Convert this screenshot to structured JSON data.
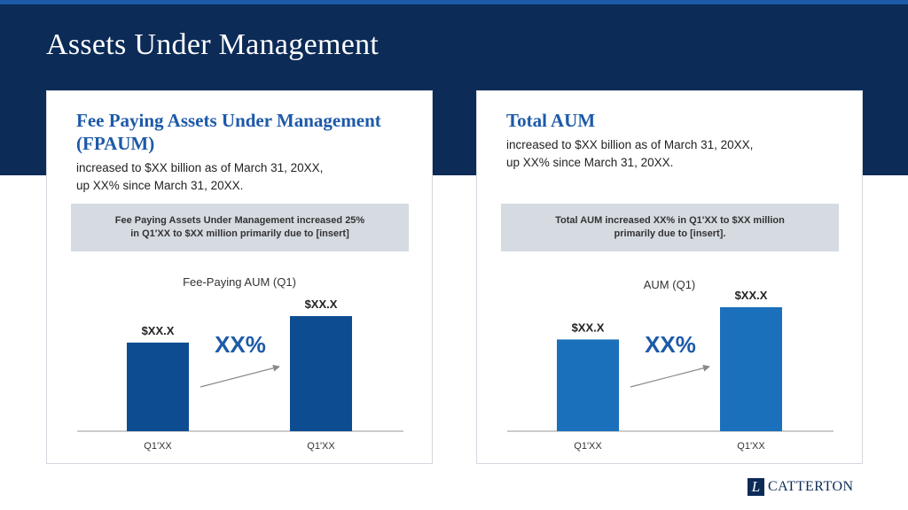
{
  "slide": {
    "title": "Assets Under Management"
  },
  "left_panel": {
    "heading": "Fee Paying Assets Under Management (FPAUM)",
    "description": "increased to $XX billion as of March 31, 20XX,\nup XX% since March 31, 20XX.",
    "callout": "Fee Paying Assets Under Management increased 25%\nin Q1'XX to $XX million primarily due to [insert]"
  },
  "right_panel": {
    "heading": "Total AUM",
    "description": "increased to $XX billion as of March 31, 20XX,\nup XX% since March 31, 20XX.",
    "callout": "Total AUM increased XX% in Q1'XX to $XX million\nprimarily due to [insert]."
  },
  "chart_data": [
    {
      "type": "bar",
      "title": "Fee-Paying AUM (Q1)",
      "categories": [
        "Q1'XX",
        "Q1'XX"
      ],
      "values": [
        0.77,
        1.0
      ],
      "data_labels": [
        "$XX.X",
        "$XX.X"
      ],
      "growth_label": "XX%",
      "bar_color": "#0e4c92",
      "grid": false,
      "y_axis_shown": false
    },
    {
      "type": "bar",
      "title": "AUM (Q1)",
      "categories": [
        "Q1'XX",
        "Q1'XX"
      ],
      "values": [
        0.74,
        1.0
      ],
      "data_labels": [
        "$XX.X",
        "$XX.X"
      ],
      "growth_label": "XX%",
      "bar_color": "#1a70bb",
      "grid": false,
      "y_axis_shown": false
    }
  ],
  "logo": {
    "mark": "L",
    "text": "CATTERTON"
  },
  "colors": {
    "header_band": "#0c2b57",
    "top_stripe": "#1d5aa8",
    "heading_blue": "#1d5aa8",
    "growth_label": "#1d5aa8",
    "callout_bg": "#d6dbe2"
  }
}
